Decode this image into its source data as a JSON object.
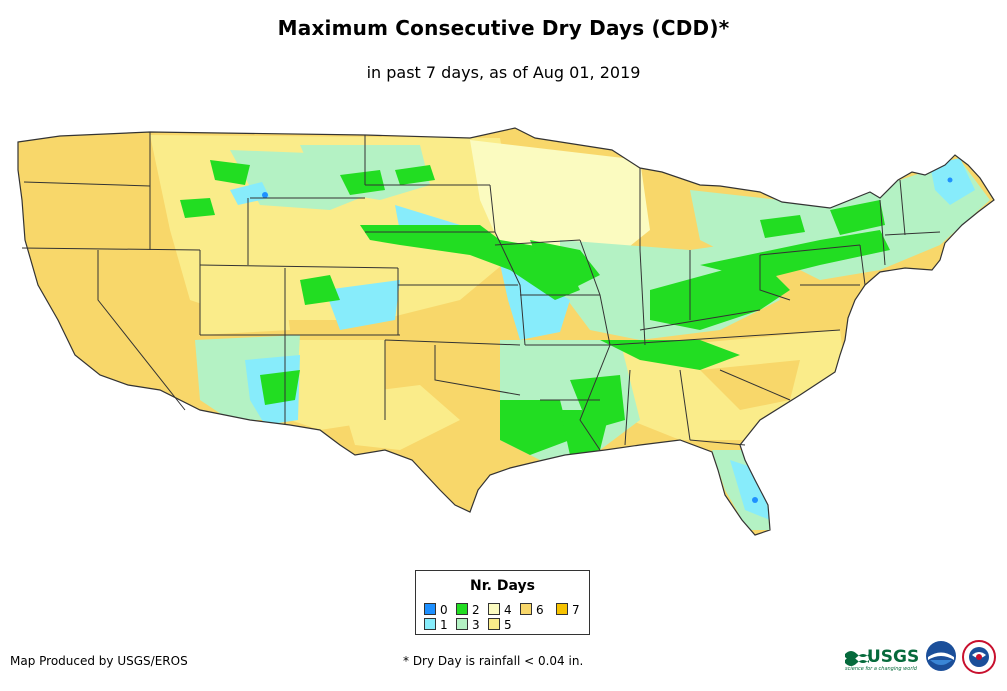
{
  "header": {
    "title": "Maximum Consecutive Dry Days (CDD)*",
    "subtitle": "in past 7 days, as of Aug 01, 2019"
  },
  "legend": {
    "title": "Nr. Days",
    "items": [
      {
        "label": "0",
        "color": "#1e90ff"
      },
      {
        "label": "1",
        "color": "#87ecfb"
      },
      {
        "label": "2",
        "color": "#22dd22"
      },
      {
        "label": "3",
        "color": "#b4f2c4"
      },
      {
        "label": "4",
        "color": "#fbfbc0"
      },
      {
        "label": "5",
        "color": "#faec8a"
      },
      {
        "label": "6",
        "color": "#f8d76a"
      },
      {
        "label": "7",
        "color": "#f6c200"
      }
    ]
  },
  "footer": {
    "credit": "Map Produced by USGS/EROS",
    "footnote": "* Dry Day is rainfall < 0.04 in."
  },
  "logos": {
    "usgs_text": "USGS",
    "usgs_tagline": "science for a changing world"
  },
  "map": {
    "region": "contiguous-united-states",
    "borders_color": "#333333",
    "colors": {
      "0": "#1e90ff",
      "1": "#87ecfb",
      "2": "#22dd22",
      "3": "#b4f2c4",
      "4": "#fbfbc0",
      "5": "#faec8a",
      "6": "#f8d76a",
      "7": "#f6c200"
    }
  }
}
